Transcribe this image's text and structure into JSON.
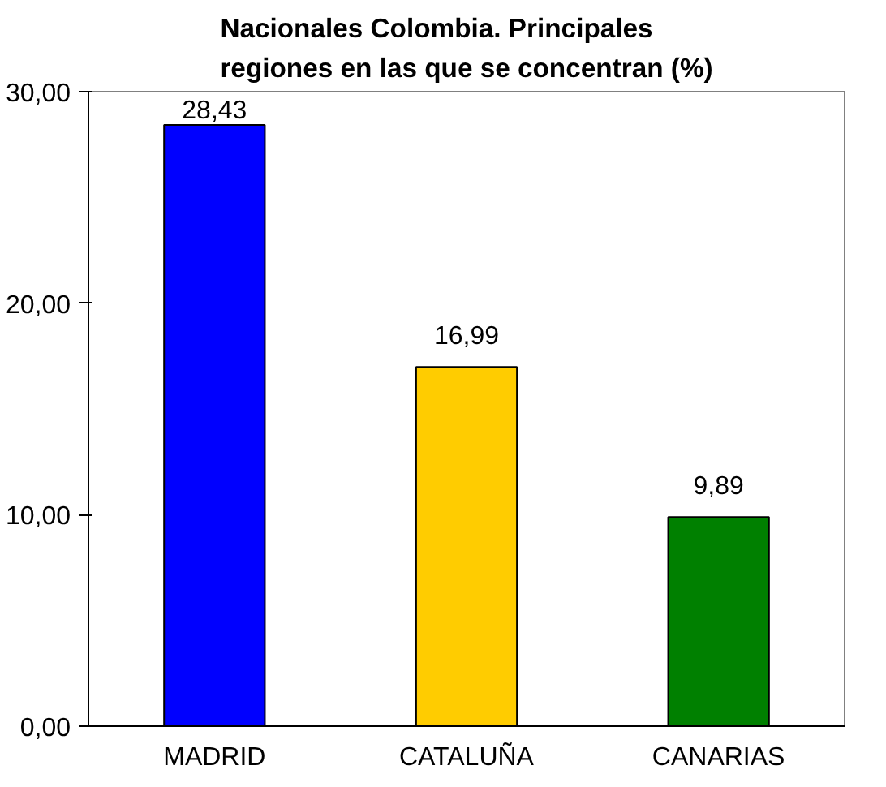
{
  "chart_data": {
    "type": "bar",
    "title": "Nacionales Colombia. Principales regiones en las que se concentran (%)",
    "categories": [
      "MADRID",
      "CATALUÑA",
      "CANARIAS"
    ],
    "values": [
      28.43,
      16.99,
      9.89
    ],
    "colors": [
      "#0000ff",
      "#ffcc00",
      "#008000"
    ],
    "value_labels": [
      "28,43",
      "16,99",
      "9,89"
    ],
    "ylim": [
      0,
      30
    ],
    "yticks": [
      {
        "value": 0,
        "label": "0,00"
      },
      {
        "value": 10,
        "label": "10,00"
      },
      {
        "value": 20,
        "label": "20,00"
      },
      {
        "value": 30,
        "label": "30,00"
      }
    ],
    "grid": false
  }
}
